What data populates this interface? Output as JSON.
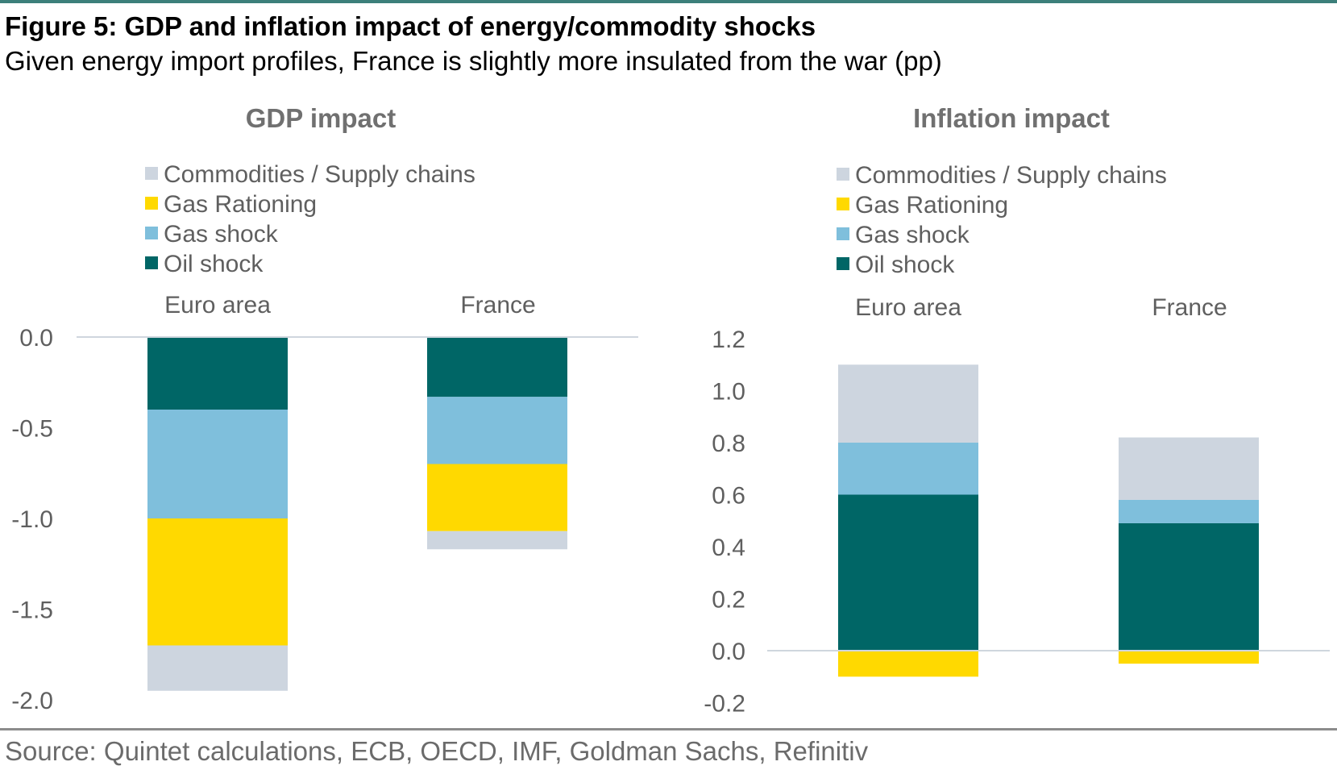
{
  "figure": {
    "title": "Figure 5: GDP and inflation impact of energy/commodity shocks",
    "subtitle": "Given energy import profiles, France is slightly more insulated from the war (pp)",
    "source": "Source: Quintet calculations, ECB, OECD, IMF, Goldman Sachs, Refinitiv"
  },
  "colors": {
    "Commodities / Supply chains": "#cdd5df",
    "Gas Rationing": "#ffd900",
    "Gas shock": "#7fbfdc",
    "Oil shock": "#006666"
  },
  "chart_data": [
    {
      "type": "bar",
      "stacked": true,
      "title": "GDP impact",
      "categories": [
        "Euro area",
        "France"
      ],
      "legend_order": [
        "Commodities / Supply chains",
        "Gas Rationing",
        "Gas shock",
        "Oil shock"
      ],
      "stack_order": [
        "Oil shock",
        "Gas shock",
        "Gas Rationing",
        "Commodities / Supply chains"
      ],
      "series": [
        {
          "name": "Commodities / Supply chains",
          "values": [
            -0.25,
            -0.1
          ]
        },
        {
          "name": "Gas Rationing",
          "values": [
            -0.7,
            -0.37
          ]
        },
        {
          "name": "Gas shock",
          "values": [
            -0.6,
            -0.37
          ]
        },
        {
          "name": "Oil shock",
          "values": [
            -0.4,
            -0.33
          ]
        }
      ],
      "ylim": [
        -2.0,
        0.0
      ],
      "yticks": [
        "0.0",
        "-0.5",
        "-1.0",
        "-1.5",
        "-2.0"
      ],
      "ytick_values": [
        0.0,
        -0.5,
        -1.0,
        -1.5,
        -2.0
      ],
      "category_labels_position": "top",
      "legend_position": "top",
      "grid": false
    },
    {
      "type": "bar",
      "stacked": true,
      "title": "Inflation impact",
      "categories": [
        "Euro area",
        "France"
      ],
      "legend_order": [
        "Commodities / Supply chains",
        "Gas Rationing",
        "Gas shock",
        "Oil shock"
      ],
      "stack_order": [
        "Oil shock",
        "Gas shock",
        "Commodities / Supply chains",
        "Gas Rationing"
      ],
      "series": [
        {
          "name": "Commodities / Supply chains",
          "values": [
            0.3,
            0.24
          ]
        },
        {
          "name": "Gas Rationing",
          "values": [
            -0.1,
            -0.05
          ]
        },
        {
          "name": "Gas shock",
          "values": [
            0.2,
            0.09
          ]
        },
        {
          "name": "Oil shock",
          "values": [
            0.6,
            0.49
          ]
        }
      ],
      "ylim": [
        -0.2,
        1.2
      ],
      "yticks": [
        "1.2",
        "1.0",
        "0.8",
        "0.6",
        "0.4",
        "0.2",
        "0.0",
        "-0.2"
      ],
      "ytick_values": [
        1.2,
        1.0,
        0.8,
        0.6,
        0.4,
        0.2,
        0.0,
        -0.2
      ],
      "category_labels_position": "top",
      "legend_position": "top",
      "grid": false
    }
  ]
}
